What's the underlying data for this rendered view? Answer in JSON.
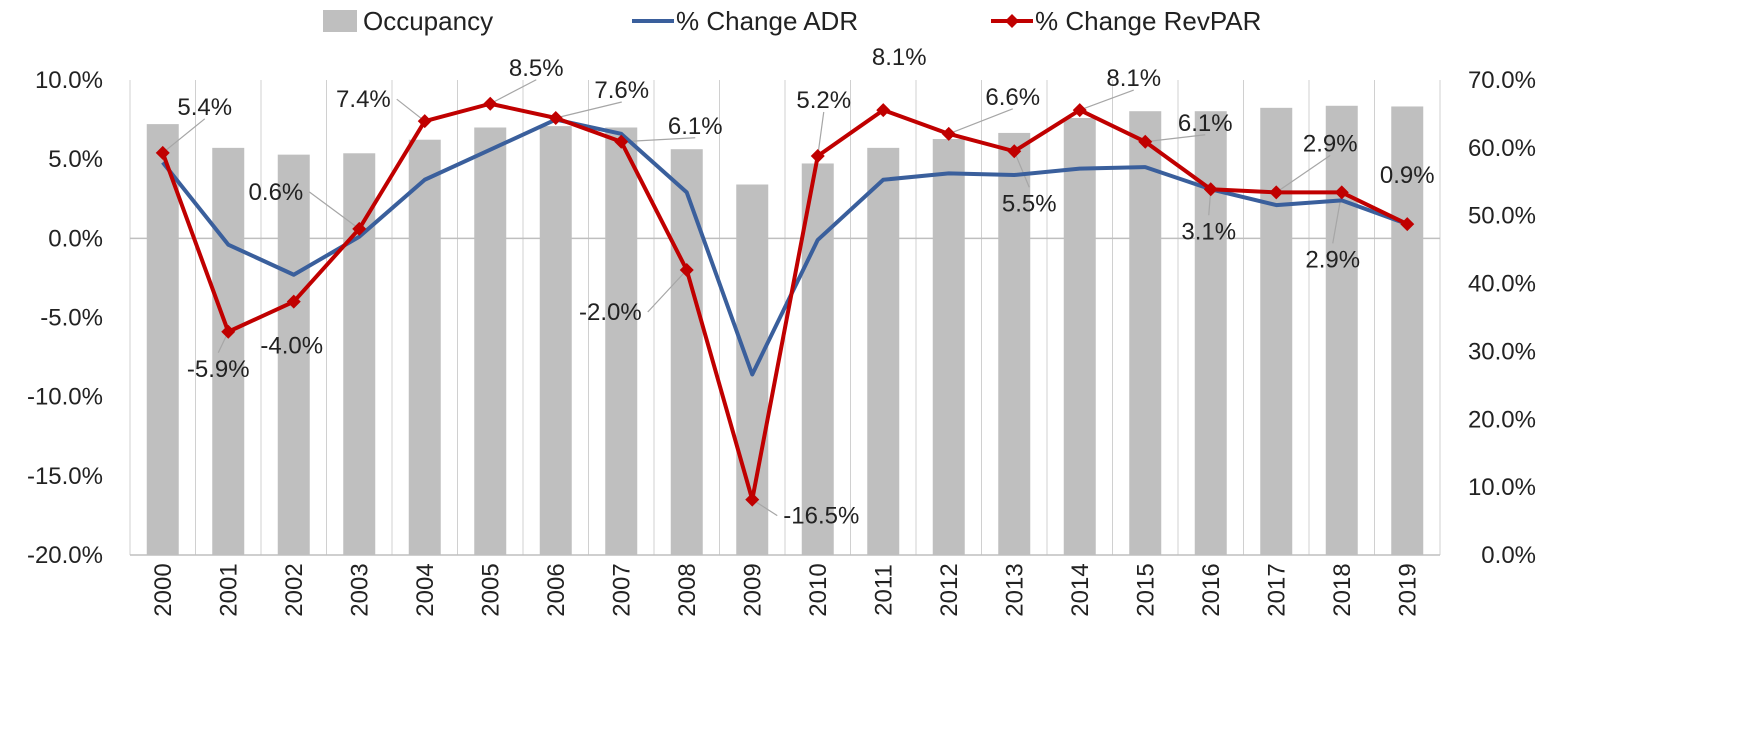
{
  "chart_data": {
    "type": "bar",
    "categories": [
      "2000",
      "2001",
      "2002",
      "2003",
      "2004",
      "2005",
      "2006",
      "2007",
      "2008",
      "2009",
      "2010",
      "2011",
      "2012",
      "2013",
      "2014",
      "2015",
      "2016",
      "2017",
      "2018",
      "2019"
    ],
    "series": [
      {
        "name": "Occupancy",
        "type": "bar",
        "axis": "right",
        "color": "#bfbfbf",
        "values": [
          63.5,
          60.0,
          59.0,
          59.2,
          61.2,
          63.0,
          63.2,
          63.0,
          59.8,
          54.6,
          57.7,
          60.0,
          61.3,
          62.2,
          64.4,
          65.4,
          65.4,
          65.9,
          66.2,
          66.1
        ]
      },
      {
        "name": "% Change ADR",
        "type": "line",
        "axis": "left",
        "color": "#3a5f9c",
        "values": [
          4.8,
          -0.4,
          -2.3,
          0.1,
          3.7,
          5.6,
          7.5,
          6.6,
          2.9,
          -8.6,
          -0.1,
          3.7,
          4.1,
          4.0,
          4.4,
          4.5,
          3.1,
          2.1,
          2.4,
          0.9
        ]
      },
      {
        "name": "% Change RevPAR",
        "type": "line",
        "axis": "left",
        "color": "#c00000",
        "values": [
          5.4,
          -5.9,
          -4.0,
          0.6,
          7.4,
          8.5,
          7.6,
          6.1,
          -2.0,
          -16.5,
          5.2,
          8.1,
          6.6,
          5.5,
          8.1,
          6.1,
          3.1,
          2.9,
          2.9,
          0.9
        ]
      }
    ],
    "data_labels": [
      "5.4%",
      "-5.9%",
      "-4.0%",
      "0.6%",
      "7.4%",
      "8.5%",
      "7.6%",
      "6.1%",
      "-2.0%",
      "-16.5%",
      "5.2%",
      "8.1%",
      "6.6%",
      "5.5%",
      "8.1%",
      "6.1%",
      "3.1%",
      "2.9%",
      "2.9%",
      "0.9%"
    ],
    "left_axis": {
      "ylim": [
        -20,
        10
      ],
      "ticks": [
        "-20.0%",
        "-15.0%",
        "-10.0%",
        "-5.0%",
        "0.0%",
        "5.0%",
        "10.0%"
      ]
    },
    "right_axis": {
      "ylim": [
        0,
        70
      ],
      "ticks": [
        "0.0%",
        "10.0%",
        "20.0%",
        "30.0%",
        "40.0%",
        "50.0%",
        "60.0%",
        "70.0%"
      ]
    },
    "legend": {
      "position": "top",
      "entries": [
        "Occupancy",
        "% Change ADR",
        "% Change RevPAR"
      ]
    },
    "title": "",
    "xlabel": "",
    "ylabel": "",
    "grid": "vertical category separators"
  }
}
